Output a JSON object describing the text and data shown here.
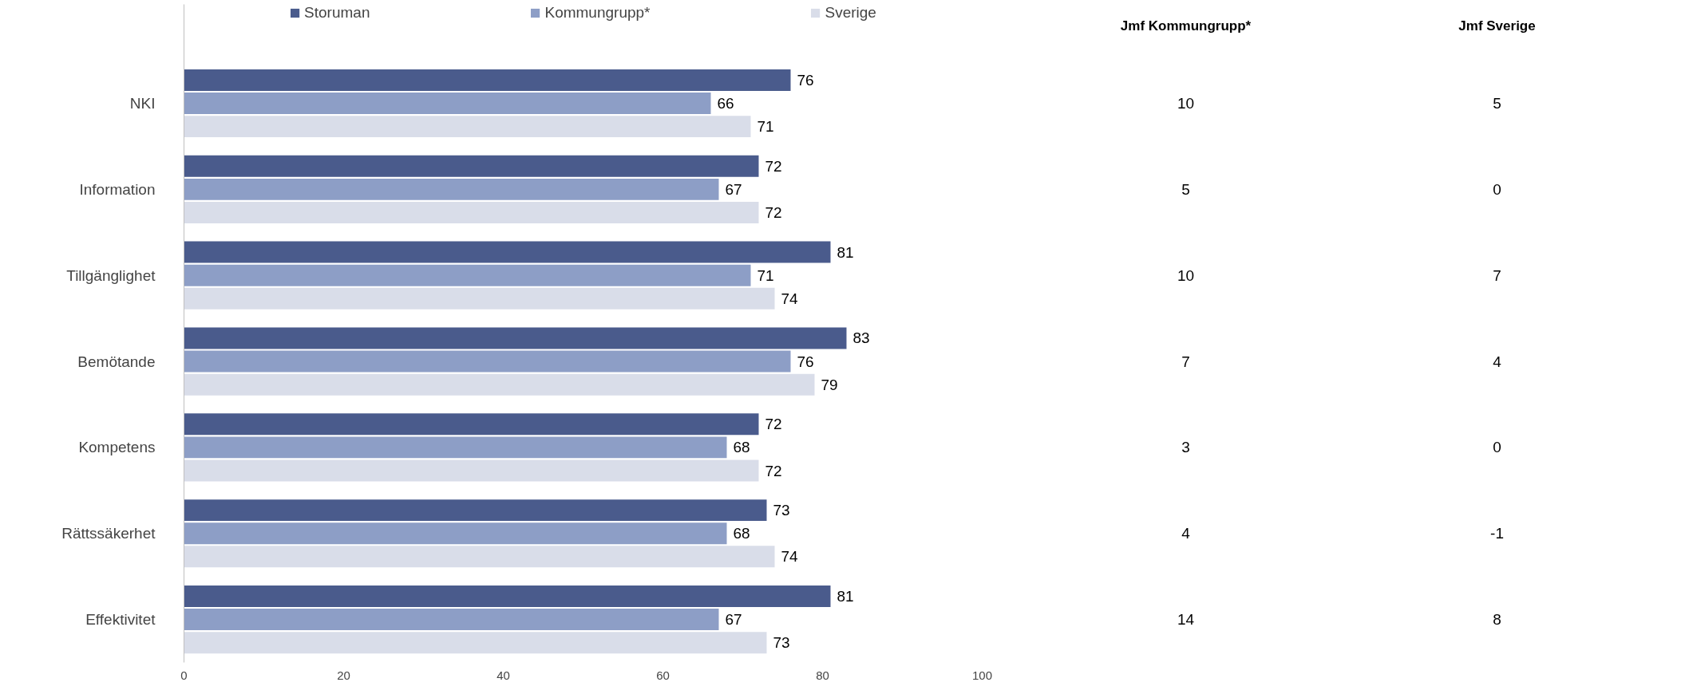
{
  "chart_data": [
    {
      "type": "bar",
      "orientation": "horizontal",
      "categories": [
        "NKI",
        "Information",
        "Tillgänglighet",
        "Bemötande",
        "Kompetens",
        "Rättssäkerhet",
        "Effektivitet"
      ],
      "series": [
        {
          "name": "Storuman",
          "color": "#4a5b8c",
          "values": [
            76,
            72,
            81,
            83,
            72,
            73,
            81
          ]
        },
        {
          "name": "Kommungrupp*",
          "color": "#8d9ec6",
          "values": [
            66,
            67,
            71,
            76,
            68,
            68,
            67
          ]
        },
        {
          "name": "Sverige",
          "color": "#d9dde9",
          "values": [
            71,
            72,
            74,
            79,
            72,
            74,
            73
          ]
        }
      ],
      "xlim": [
        0,
        100
      ],
      "xticks": [
        0,
        20,
        40,
        60,
        80,
        100
      ],
      "data_labels": true,
      "grid": false,
      "legend": "top"
    },
    {
      "type": "other",
      "categories": [
        "Jmf Kommungrupp*",
        "Jmf Sverige"
      ],
      "annotations": [
        "10",
        "5",
        "5",
        "0",
        "10",
        "7",
        "7",
        "4",
        "3",
        "0",
        "4",
        "-1",
        "14",
        "8"
      ]
    }
  ]
}
